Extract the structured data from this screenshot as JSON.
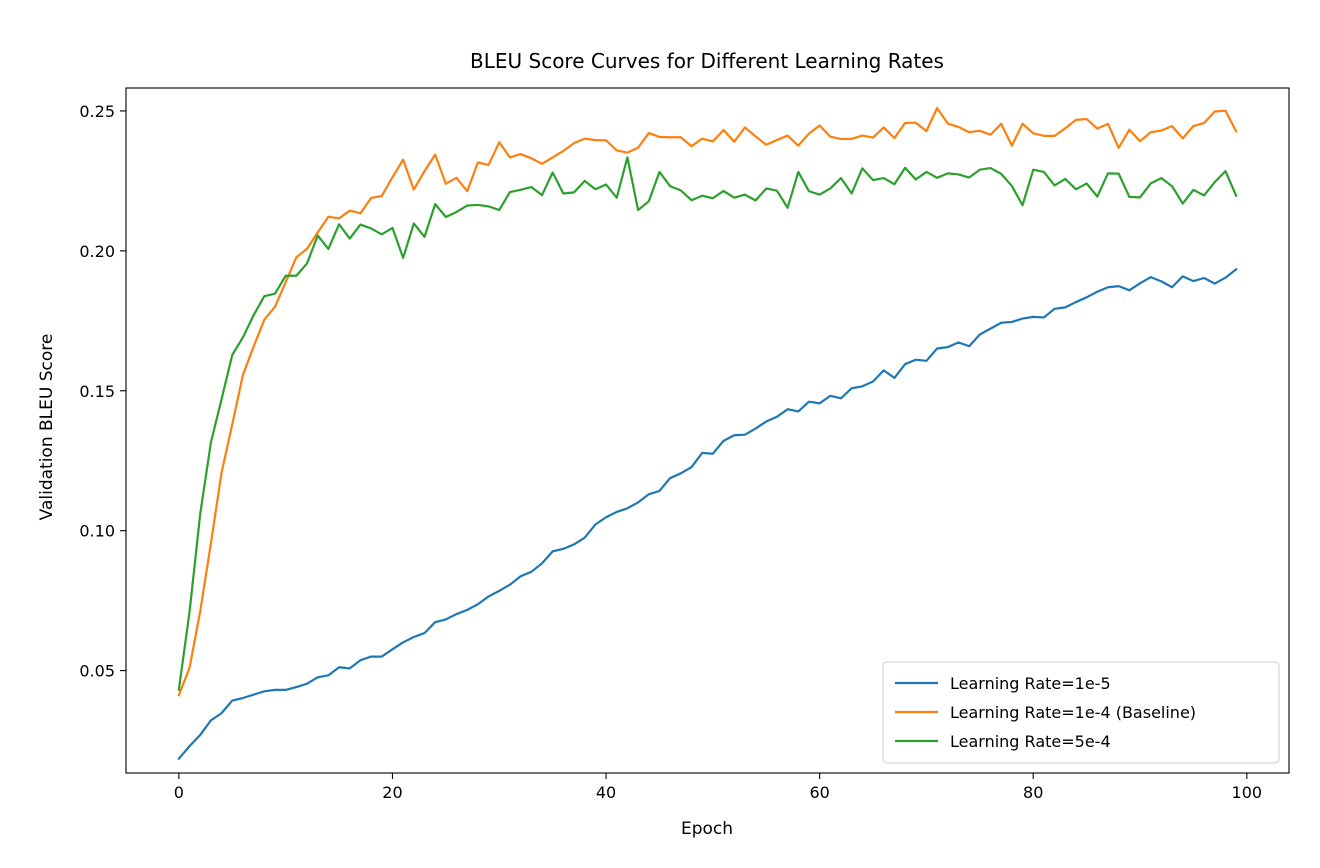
{
  "chart_data": {
    "type": "line",
    "title": "BLEU Score Curves for Different Learning Rates",
    "xlabel": "Epoch",
    "ylabel": "Validation BLEU Score",
    "xlim": [
      -4.95,
      103.95
    ],
    "ylim": [
      0.0134,
      0.2582
    ],
    "xticks": [
      0,
      20,
      40,
      60,
      80,
      100
    ],
    "yticks": [
      0.05,
      0.1,
      0.15,
      0.2,
      0.25
    ],
    "xtick_labels": [
      "0",
      "20",
      "40",
      "60",
      "80",
      "100"
    ],
    "ytick_labels": [
      "0.05",
      "0.10",
      "0.15",
      "0.20",
      "0.25"
    ],
    "grid": false,
    "legend_position": "lower-right",
    "series": [
      {
        "name": "Learning Rate=1e-5",
        "color": "#1f77b4",
        "values": [
          0.0185,
          0.023,
          0.027,
          0.0322,
          0.0348,
          0.0393,
          0.0402,
          0.0414,
          0.0426,
          0.0431,
          0.0431,
          0.0441,
          0.0453,
          0.0476,
          0.0483,
          0.0512,
          0.0508,
          0.0537,
          0.055,
          0.055,
          0.0576,
          0.0601,
          0.062,
          0.0634,
          0.0673,
          0.0683,
          0.0702,
          0.0717,
          0.0737,
          0.0765,
          0.0785,
          0.0807,
          0.0837,
          0.0853,
          0.0883,
          0.0926,
          0.0935,
          0.0951,
          0.0975,
          0.1022,
          0.1048,
          0.1067,
          0.108,
          0.1101,
          0.113,
          0.1142,
          0.1188,
          0.1205,
          0.1227,
          0.1278,
          0.1275,
          0.1321,
          0.1341,
          0.1343,
          0.1365,
          0.139,
          0.1407,
          0.1434,
          0.1426,
          0.1461,
          0.1455,
          0.1482,
          0.1473,
          0.1509,
          0.1516,
          0.1533,
          0.1573,
          0.1546,
          0.1595,
          0.1611,
          0.1607,
          0.1651,
          0.1656,
          0.1673,
          0.1659,
          0.1701,
          0.1722,
          0.1743,
          0.1746,
          0.1758,
          0.1764,
          0.1762,
          0.1793,
          0.1798,
          0.1817,
          0.1834,
          0.1854,
          0.187,
          0.1874,
          0.1859,
          0.1884,
          0.1906,
          0.1891,
          0.187,
          0.1909,
          0.1892,
          0.1903,
          0.1883,
          0.1904,
          0.1934
        ]
      },
      {
        "name": "Learning Rate=1e-4 (Baseline)",
        "color": "#ff7f0e",
        "values": [
          0.0412,
          0.051,
          0.0712,
          0.0955,
          0.1208,
          0.138,
          0.1557,
          0.1658,
          0.1754,
          0.18,
          0.1888,
          0.1977,
          0.2007,
          0.2066,
          0.2122,
          0.2116,
          0.2144,
          0.2134,
          0.2189,
          0.2196,
          0.2263,
          0.2326,
          0.2219,
          0.2285,
          0.2344,
          0.224,
          0.2261,
          0.2213,
          0.2316,
          0.2307,
          0.2388,
          0.2334,
          0.2346,
          0.2331,
          0.2311,
          0.2334,
          0.2357,
          0.2385,
          0.2401,
          0.2396,
          0.2395,
          0.2359,
          0.2351,
          0.2369,
          0.2421,
          0.2407,
          0.2406,
          0.2406,
          0.2374,
          0.2401,
          0.2391,
          0.2432,
          0.239,
          0.2441,
          0.2409,
          0.2379,
          0.2396,
          0.2412,
          0.2376,
          0.2419,
          0.2448,
          0.2408,
          0.24,
          0.24,
          0.2412,
          0.2405,
          0.2441,
          0.2403,
          0.2457,
          0.2458,
          0.2428,
          0.251,
          0.2455,
          0.2443,
          0.2424,
          0.2429,
          0.2415,
          0.2454,
          0.2376,
          0.2454,
          0.242,
          0.2411,
          0.2411,
          0.2438,
          0.2468,
          0.2471,
          0.2437,
          0.2454,
          0.2368,
          0.2433,
          0.2392,
          0.2424,
          0.243,
          0.2446,
          0.2402,
          0.2446,
          0.2457,
          0.2498,
          0.2501,
          0.2427
        ]
      },
      {
        "name": "Learning Rate=5e-4",
        "color": "#2ca02c",
        "values": [
          0.0432,
          0.071,
          0.106,
          0.1315,
          0.147,
          0.1628,
          0.1691,
          0.177,
          0.1838,
          0.1847,
          0.1911,
          0.1911,
          0.1955,
          0.2055,
          0.2007,
          0.2095,
          0.2044,
          0.2094,
          0.208,
          0.2059,
          0.2082,
          0.1975,
          0.2098,
          0.205,
          0.2167,
          0.2121,
          0.2139,
          0.2162,
          0.2164,
          0.2159,
          0.2146,
          0.221,
          0.2218,
          0.2228,
          0.2199,
          0.228,
          0.2205,
          0.2209,
          0.225,
          0.222,
          0.2237,
          0.219,
          0.2334,
          0.2146,
          0.2177,
          0.2282,
          0.2231,
          0.2216,
          0.2181,
          0.2197,
          0.2188,
          0.2214,
          0.219,
          0.2201,
          0.218,
          0.2223,
          0.2215,
          0.2154,
          0.2282,
          0.2213,
          0.2201,
          0.2223,
          0.226,
          0.2205,
          0.2295,
          0.2253,
          0.226,
          0.2238,
          0.2297,
          0.2255,
          0.2282,
          0.2261,
          0.2277,
          0.2273,
          0.2262,
          0.229,
          0.2296,
          0.2275,
          0.2232,
          0.2163,
          0.229,
          0.2282,
          0.2234,
          0.2257,
          0.222,
          0.2241,
          0.2194,
          0.2277,
          0.2276,
          0.2193,
          0.2191,
          0.2241,
          0.226,
          0.2231,
          0.2169,
          0.2218,
          0.2198,
          0.2246,
          0.2285,
          0.2197
        ]
      }
    ]
  }
}
